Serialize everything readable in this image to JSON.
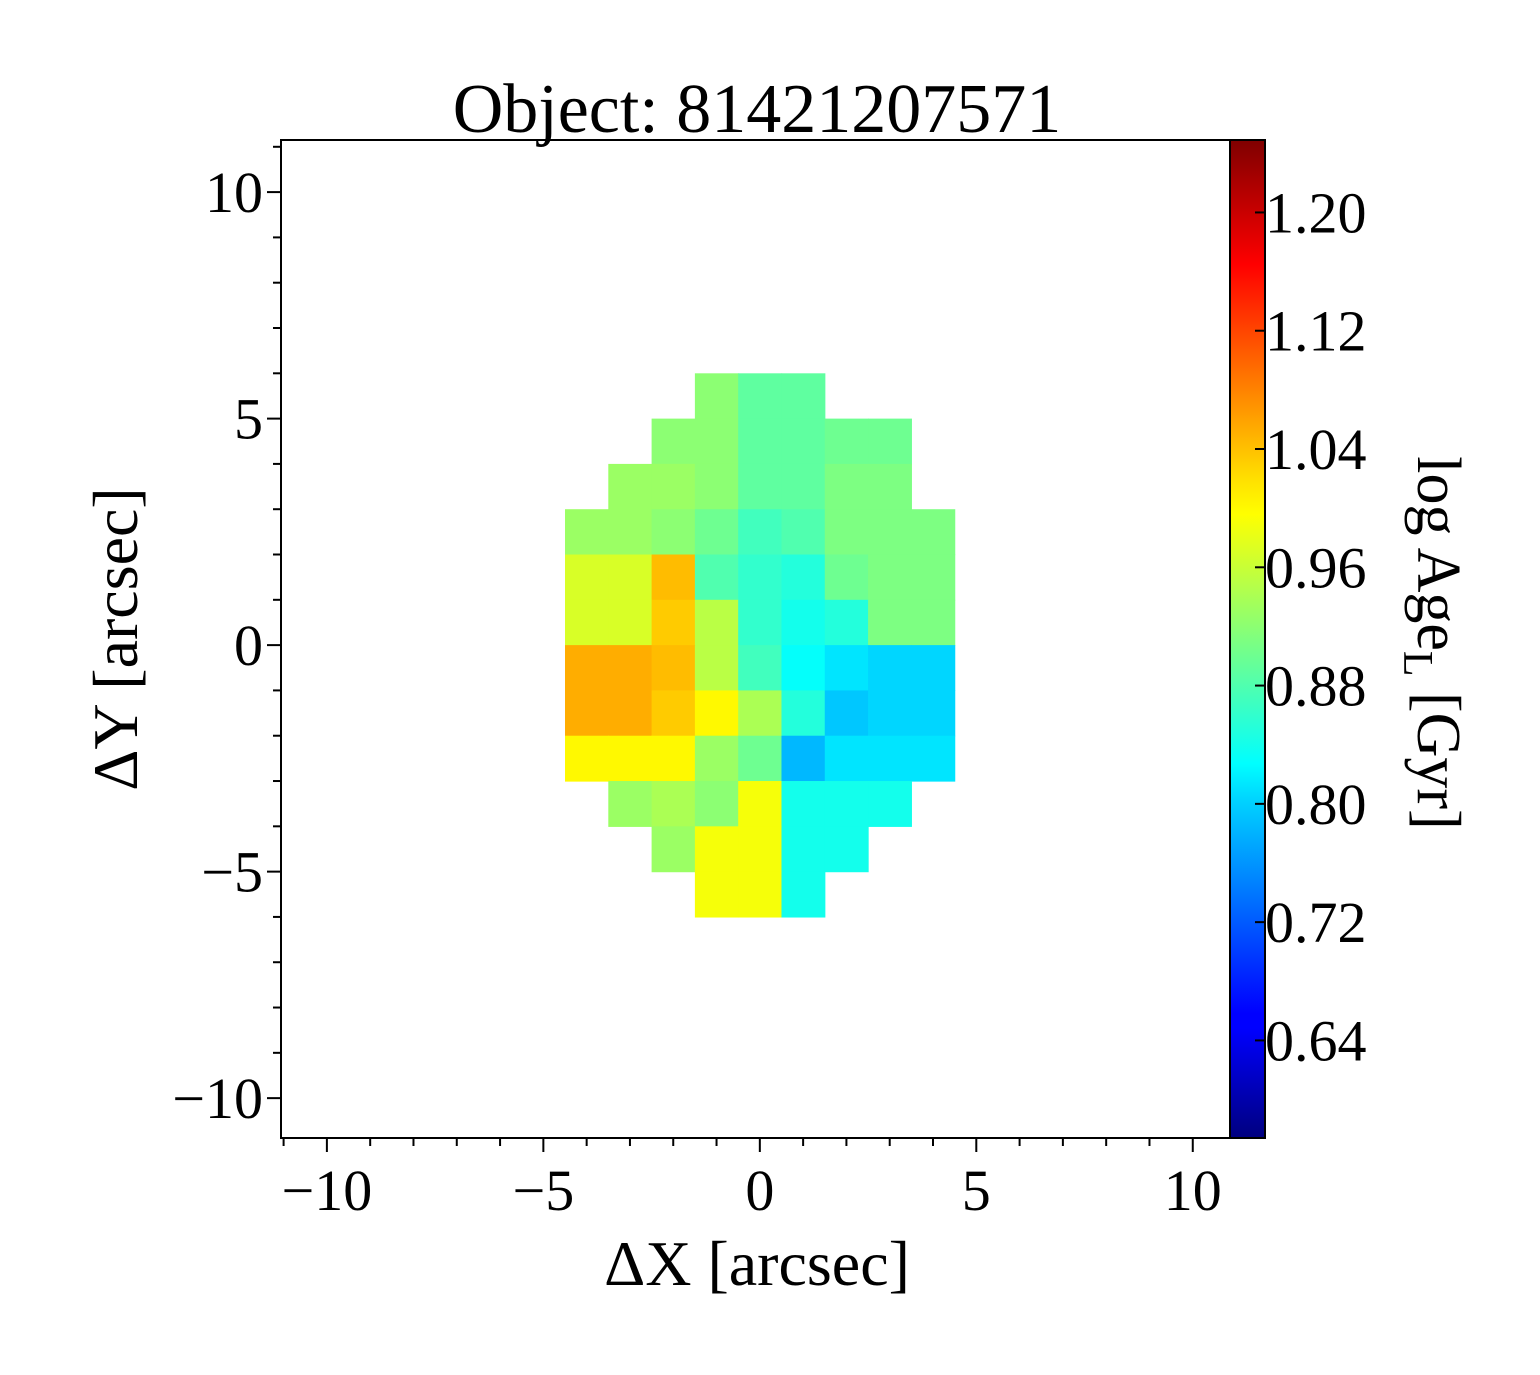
{
  "chart_data": {
    "type": "heatmap",
    "title": "Object: 81421207571",
    "xlabel": "ΔX [arcsec]",
    "ylabel": "ΔY [arcsec]",
    "colorbar_label": [
      "log Age",
      "L",
      " [Gyr]"
    ],
    "colormap": "jet",
    "xlim": [
      -11.06,
      10.86
    ],
    "ylim": [
      -10.88,
      11.15
    ],
    "xticks": [
      {
        "value": -10,
        "label": "−10"
      },
      {
        "value": -5,
        "label": "−5"
      },
      0,
      5,
      10
    ],
    "yticks": [
      {
        "value": -10,
        "label": "−10"
      },
      {
        "value": -5,
        "label": "−5"
      },
      0,
      5,
      10
    ],
    "xticks_minor": [
      -11,
      -9,
      -8,
      -7,
      -6,
      -4,
      -3,
      -2,
      -1,
      1,
      2,
      3,
      4,
      6,
      7,
      8,
      9
    ],
    "yticks_minor": [
      -9,
      -8,
      -7,
      -6,
      -4,
      -3,
      -2,
      -1,
      1,
      2,
      3,
      4,
      6,
      7,
      8,
      9,
      11
    ],
    "clim": [
      0.574,
      1.249
    ],
    "cticks": [
      {
        "value": 0.64,
        "label": "0.64"
      },
      0.72,
      {
        "value": 0.8,
        "label": "0.80"
      },
      0.88,
      0.96,
      1.04,
      1.12,
      {
        "value": 1.2,
        "label": "1.20"
      }
    ],
    "x": [
      -4,
      -3,
      -2,
      -1,
      0,
      1,
      2,
      3,
      4
    ],
    "y": [
      5.5,
      4.5,
      3.5,
      2.5,
      1.5,
      0.5,
      -0.5,
      -1.5,
      -2.5,
      -3.5,
      -4.5,
      -5.5
    ],
    "values": [
      [
        null,
        null,
        null,
        0.92,
        0.89,
        0.89,
        null,
        null,
        null
      ],
      [
        null,
        null,
        0.92,
        0.92,
        0.89,
        0.89,
        0.9,
        0.9,
        null
      ],
      [
        null,
        0.93,
        0.93,
        0.92,
        0.89,
        0.89,
        0.91,
        0.91,
        null
      ],
      [
        0.93,
        0.93,
        0.92,
        0.9,
        0.87,
        0.88,
        0.91,
        0.91,
        0.91
      ],
      [
        0.97,
        0.97,
        1.04,
        0.88,
        0.86,
        0.85,
        0.9,
        0.91,
        0.91
      ],
      [
        0.97,
        0.97,
        1.03,
        0.95,
        0.86,
        0.84,
        0.85,
        0.91,
        0.91
      ],
      [
        1.05,
        1.05,
        1.04,
        0.95,
        0.87,
        0.83,
        0.81,
        0.8,
        0.8
      ],
      [
        1.05,
        1.05,
        1.03,
        1.0,
        0.94,
        0.85,
        0.79,
        0.8,
        0.8
      ],
      [
        1.0,
        1.0,
        1.0,
        0.93,
        0.9,
        0.78,
        0.81,
        0.81,
        0.81
      ],
      [
        null,
        0.93,
        0.94,
        0.92,
        0.99,
        0.84,
        0.84,
        0.84,
        null
      ],
      [
        null,
        null,
        0.93,
        0.99,
        0.99,
        0.84,
        0.84,
        null,
        null
      ],
      [
        null,
        null,
        null,
        0.99,
        0.99,
        0.84,
        null,
        null,
        null
      ]
    ]
  }
}
